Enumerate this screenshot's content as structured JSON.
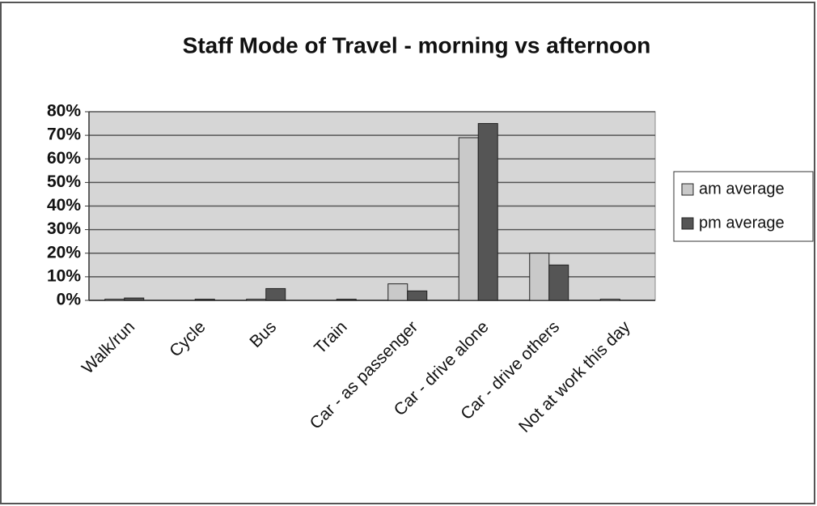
{
  "chart_data": {
    "type": "bar",
    "title": "Staff Mode of Travel - morning vs afternoon",
    "categories": [
      "Walk/run",
      "Cycle",
      "Bus",
      "Train",
      "Car - as passenger",
      "Car - drive alone",
      "Car - drive others",
      "Not at work this day"
    ],
    "series": [
      {
        "name": "am average",
        "color": "#c9c9c9",
        "values": [
          0.5,
          0,
          0.5,
          0,
          7,
          69,
          20,
          0.5
        ]
      },
      {
        "name": "pm average",
        "color": "#555555",
        "values": [
          1,
          0.5,
          5,
          0.5,
          4,
          75,
          15,
          0
        ]
      }
    ],
    "ylim": [
      0,
      80
    ],
    "yticks": [
      {
        "value": 0,
        "label": "0%"
      },
      {
        "value": 10,
        "label": "10%"
      },
      {
        "value": 20,
        "label": "20%"
      },
      {
        "value": 30,
        "label": "30%"
      },
      {
        "value": 40,
        "label": "40%"
      },
      {
        "value": 50,
        "label": "50%"
      },
      {
        "value": 60,
        "label": "60%"
      },
      {
        "value": 70,
        "label": "70%"
      },
      {
        "value": 80,
        "label": "80%"
      }
    ],
    "grid": true,
    "legend": "right"
  }
}
